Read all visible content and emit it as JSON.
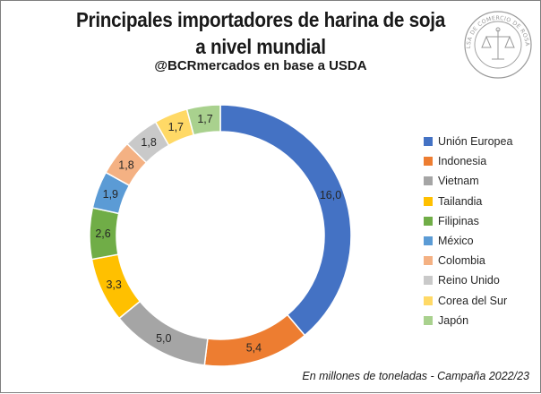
{
  "header": {
    "title_line1": "Principales importadores de harina de soja",
    "title_line2": "a nivel mundial",
    "subtitle": "@BCRmercados en base a USDA"
  },
  "seal": {
    "top_text": "BOLSA DE COMERCIO DE ROSARIO",
    "color": "#9a9a9a"
  },
  "chart_data": {
    "type": "pie",
    "variant": "donut",
    "title": "Principales importadores de harina de soja a nivel mundial",
    "categories": [
      "Unión Europea",
      "Indonesia",
      "Vietnam",
      "Tailandia",
      "Filipinas",
      "México",
      "Colombia",
      "Reino Unido",
      "Corea del Sur",
      "Japón"
    ],
    "values": [
      16.0,
      5.4,
      5.0,
      3.3,
      2.6,
      1.9,
      1.8,
      1.8,
      1.7,
      1.7
    ],
    "labels": [
      "16,0",
      "5,4",
      "5,0",
      "3,3",
      "2,6",
      "1,9",
      "1,8",
      "1,8",
      "1,7",
      "1,7"
    ],
    "colors": [
      "#4472c4",
      "#ed7d31",
      "#a5a5a5",
      "#ffc000",
      "#70ad47",
      "#5b9bd5",
      "#f4b183",
      "#c9c9c9",
      "#ffd966",
      "#a9d18e"
    ],
    "legend_position": "right",
    "start": "top",
    "direction": "clockwise"
  },
  "footnote": "En millones de toneladas - Campaña 2022/23"
}
